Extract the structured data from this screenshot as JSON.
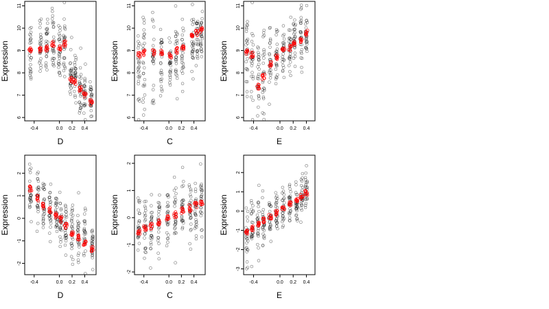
{
  "chart_data": [
    {
      "type": "scatter",
      "xlabel": "D",
      "ylabel": "Expression",
      "xlim": [
        -0.55,
        0.58
      ],
      "ylim": [
        5.85,
        11.2
      ],
      "xticks": [
        "-0.4",
        "0.0",
        "0.2",
        "0.4"
      ],
      "xtick_values": [
        -0.4,
        0.0,
        0.2,
        0.4
      ],
      "yticks": [
        "6",
        "7",
        "8",
        "9",
        "10",
        "11"
      ],
      "ytick_values": [
        6,
        7,
        8,
        9,
        10,
        11
      ],
      "groups": [
        {
          "x": -0.46,
          "center": 9.0,
          "spread": 0.8,
          "red": 9.0
        },
        {
          "x": -0.3,
          "center": 9.1,
          "spread": 0.85,
          "red": 9.0
        },
        {
          "x": -0.2,
          "center": 9.2,
          "spread": 0.8,
          "red": 9.1
        },
        {
          "x": -0.1,
          "center": 9.3,
          "spread": 0.75,
          "red": 9.3
        },
        {
          "x": 0.0,
          "center": 8.8,
          "spread": 0.65,
          "red": 9.1
        },
        {
          "x": 0.08,
          "center": 9.2,
          "spread": 0.8,
          "red": 9.3
        },
        {
          "x": 0.18,
          "center": 8.0,
          "spread": 0.55,
          "red": 7.7
        },
        {
          "x": 0.25,
          "center": 7.9,
          "spread": 0.6,
          "red": 7.6
        },
        {
          "x": 0.33,
          "center": 7.2,
          "spread": 0.5,
          "red": 7.3
        },
        {
          "x": 0.4,
          "center": 7.0,
          "spread": 0.5,
          "red": 7.0
        },
        {
          "x": 0.5,
          "center": 6.9,
          "spread": 0.4,
          "red": 6.7
        }
      ]
    },
    {
      "type": "scatter",
      "xlabel": "C",
      "ylabel": "Expression",
      "xlim": [
        -0.55,
        0.58
      ],
      "ylim": [
        5.85,
        11.2
      ],
      "xticks": [
        "-0.4",
        "0.0",
        "0.2",
        "0.4"
      ],
      "xtick_values": [
        -0.4,
        0.0,
        0.2,
        0.4
      ],
      "yticks": [
        "6",
        "7",
        "8",
        "9",
        "10",
        "11"
      ],
      "ytick_values": [
        6,
        7,
        8,
        9,
        10,
        11
      ],
      "groups": [
        {
          "x": -0.48,
          "center": 8.5,
          "spread": 0.9,
          "red": 8.8
        },
        {
          "x": -0.4,
          "center": 8.4,
          "spread": 0.95,
          "red": 8.9
        },
        {
          "x": -0.25,
          "center": 8.3,
          "spread": 0.9,
          "red": 8.9
        },
        {
          "x": -0.12,
          "center": 8.4,
          "spread": 0.9,
          "red": 8.9
        },
        {
          "x": 0.02,
          "center": 8.5,
          "spread": 0.85,
          "red": 8.8
        },
        {
          "x": 0.12,
          "center": 8.6,
          "spread": 0.8,
          "red": 9.0
        },
        {
          "x": 0.22,
          "center": 8.7,
          "spread": 0.8,
          "red": 9.1
        },
        {
          "x": 0.38,
          "center": 9.4,
          "spread": 0.7,
          "red": 9.7
        },
        {
          "x": 0.45,
          "center": 9.6,
          "spread": 0.6,
          "red": 9.8
        },
        {
          "x": 0.52,
          "center": 9.7,
          "spread": 0.55,
          "red": 9.9
        }
      ]
    },
    {
      "type": "scatter",
      "xlabel": "E",
      "ylabel": "Expression",
      "xlim": [
        -0.55,
        0.53
      ],
      "ylim": [
        5.85,
        11.2
      ],
      "xticks": [
        "-0.4",
        "0.0",
        "0.2",
        "0.4"
      ],
      "xtick_values": [
        -0.4,
        0.0,
        0.2,
        0.4
      ],
      "yticks": [
        "6",
        "7",
        "8",
        "9",
        "10",
        "11"
      ],
      "ytick_values": [
        6,
        7,
        8,
        9,
        10,
        11
      ],
      "groups": [
        {
          "x": -0.5,
          "center": 8.8,
          "spread": 0.9,
          "red": 8.9
        },
        {
          "x": -0.42,
          "center": 8.6,
          "spread": 1.0,
          "red": 8.8
        },
        {
          "x": -0.33,
          "center": 7.6,
          "spread": 0.9,
          "red": 7.4
        },
        {
          "x": -0.25,
          "center": 7.8,
          "spread": 0.9,
          "red": 7.8
        },
        {
          "x": -0.15,
          "center": 8.3,
          "spread": 0.9,
          "red": 8.4
        },
        {
          "x": -0.05,
          "center": 8.6,
          "spread": 0.8,
          "red": 8.7
        },
        {
          "x": 0.05,
          "center": 9.0,
          "spread": 0.7,
          "red": 9.0
        },
        {
          "x": 0.15,
          "center": 9.2,
          "spread": 0.7,
          "red": 9.1
        },
        {
          "x": 0.22,
          "center": 9.4,
          "spread": 0.6,
          "red": 9.3
        },
        {
          "x": 0.32,
          "center": 9.6,
          "spread": 0.6,
          "red": 9.4
        },
        {
          "x": 0.4,
          "center": 9.6,
          "spread": 0.6,
          "red": 9.8
        }
      ]
    },
    {
      "type": "scatter",
      "xlabel": "D",
      "ylabel": "Expression",
      "xlim": [
        -0.55,
        0.58
      ],
      "ylim": [
        -2.5,
        2.8
      ],
      "xticks": [
        "-0.4",
        "0.0",
        "0.2",
        "0.4"
      ],
      "xtick_values": [
        -0.4,
        0.0,
        0.2,
        0.4
      ],
      "yticks": [
        "-2",
        "-1",
        "0",
        "1",
        "2"
      ],
      "ytick_values": [
        -2,
        -1,
        0,
        1,
        2
      ],
      "groups": [
        {
          "x": -0.46,
          "center": 1.0,
          "spread": 0.6,
          "red": 1.3
        },
        {
          "x": -0.34,
          "center": 0.7,
          "spread": 0.7,
          "red": 0.9
        },
        {
          "x": -0.25,
          "center": 0.5,
          "spread": 0.6,
          "red": 0.55
        },
        {
          "x": -0.15,
          "center": 0.3,
          "spread": 0.6,
          "red": 0.35
        },
        {
          "x": -0.05,
          "center": 0.1,
          "spread": 0.55,
          "red": 0.15
        },
        {
          "x": 0.02,
          "center": -0.1,
          "spread": 0.55,
          "red": -0.05
        },
        {
          "x": 0.1,
          "center": -0.3,
          "spread": 0.55,
          "red": -0.35
        },
        {
          "x": 0.2,
          "center": -0.6,
          "spread": 0.55,
          "red": -0.65
        },
        {
          "x": 0.3,
          "center": -0.8,
          "spread": 0.55,
          "red": -0.85
        },
        {
          "x": 0.4,
          "center": -1.0,
          "spread": 0.55,
          "red": -1.1
        },
        {
          "x": 0.52,
          "center": -1.2,
          "spread": 0.45,
          "red": -1.35
        }
      ]
    },
    {
      "type": "scatter",
      "xlabel": "C",
      "ylabel": "Expression",
      "xlim": [
        -0.55,
        0.58
      ],
      "ylim": [
        -2.1,
        2.3
      ],
      "xticks": [
        "-0.4",
        "0.0",
        "0.2",
        "0.4"
      ],
      "xtick_values": [
        -0.4,
        0.0,
        0.2,
        0.4
      ],
      "yticks": [
        "-2",
        "-1",
        "0",
        "1",
        "2"
      ],
      "ytick_values": [
        -2,
        -1,
        0,
        1,
        2
      ],
      "groups": [
        {
          "x": -0.48,
          "center": -0.4,
          "spread": 0.6,
          "red": -0.5
        },
        {
          "x": -0.38,
          "center": -0.3,
          "spread": 0.6,
          "red": -0.35
        },
        {
          "x": -0.28,
          "center": -0.3,
          "spread": 0.55,
          "red": -0.3
        },
        {
          "x": -0.16,
          "center": -0.2,
          "spread": 0.6,
          "red": -0.2
        },
        {
          "x": -0.02,
          "center": -0.1,
          "spread": 0.55,
          "red": -0.05
        },
        {
          "x": 0.1,
          "center": 0.1,
          "spread": 0.6,
          "red": 0.1
        },
        {
          "x": 0.22,
          "center": 0.2,
          "spread": 0.6,
          "red": 0.25
        },
        {
          "x": 0.34,
          "center": 0.4,
          "spread": 0.6,
          "red": 0.35
        },
        {
          "x": 0.43,
          "center": 0.5,
          "spread": 0.55,
          "red": 0.45
        },
        {
          "x": 0.52,
          "center": 0.6,
          "spread": 0.55,
          "red": 0.55
        }
      ]
    },
    {
      "type": "scatter",
      "xlabel": "E",
      "ylabel": "Expression",
      "xlim": [
        -0.55,
        0.53
      ],
      "ylim": [
        -3.3,
        2.9
      ],
      "xticks": [
        "-0.4",
        "0.0",
        "0.2",
        "0.4"
      ],
      "xtick_values": [
        -0.4,
        0.0,
        0.2,
        0.4
      ],
      "yticks": [
        "-3",
        "-2",
        "-1",
        "0",
        "1",
        "2"
      ],
      "ytick_values": [
        -3,
        -2,
        -1,
        0,
        1,
        2
      ],
      "groups": [
        {
          "x": -0.5,
          "center": -1.2,
          "spread": 0.7,
          "red": -1.1
        },
        {
          "x": -0.42,
          "center": -0.9,
          "spread": 0.8,
          "red": -0.9
        },
        {
          "x": -0.33,
          "center": -0.7,
          "spread": 0.7,
          "red": -0.7
        },
        {
          "x": -0.25,
          "center": -0.5,
          "spread": 0.6,
          "red": -0.5
        },
        {
          "x": -0.15,
          "center": -0.3,
          "spread": 0.55,
          "red": -0.3
        },
        {
          "x": -0.05,
          "center": -0.1,
          "spread": 0.55,
          "red": -0.1
        },
        {
          "x": 0.05,
          "center": 0.1,
          "spread": 0.55,
          "red": 0.15
        },
        {
          "x": 0.15,
          "center": 0.3,
          "spread": 0.55,
          "red": 0.35
        },
        {
          "x": 0.25,
          "center": 0.5,
          "spread": 0.55,
          "red": 0.55
        },
        {
          "x": 0.33,
          "center": 0.7,
          "spread": 0.55,
          "red": 0.75
        },
        {
          "x": 0.4,
          "center": 0.9,
          "spread": 0.6,
          "red": 0.95
        }
      ]
    }
  ],
  "colors": {
    "points": "#000000",
    "fitted": "#ff0000"
  }
}
